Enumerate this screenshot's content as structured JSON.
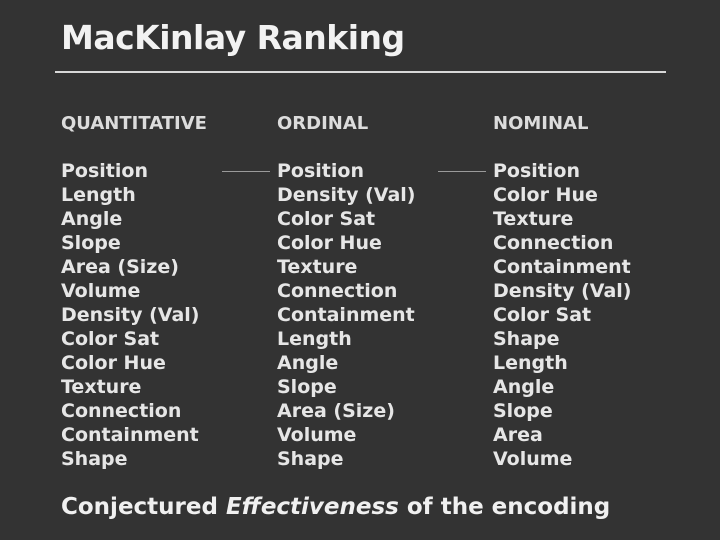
{
  "title": "MacKinlay Ranking",
  "columns": [
    {
      "header": "QUANTITATIVE",
      "items": [
        "Position",
        "Length",
        "Angle",
        "Slope",
        "Area (Size)",
        "Volume",
        "Density (Val)",
        "Color Sat",
        "Color Hue",
        "Texture",
        "Connection",
        "Containment",
        "Shape"
      ]
    },
    {
      "header": "ORDINAL",
      "items": [
        "Position",
        "Density (Val)",
        "Color Sat",
        "Color Hue",
        "Texture",
        "Connection",
        "Containment",
        "Length",
        "Angle",
        "Slope",
        "Area (Size)",
        "Volume",
        "Shape"
      ]
    },
    {
      "header": "NOMINAL",
      "items": [
        "Position",
        "Color Hue",
        "Texture",
        "Connection",
        "Containment",
        "Density (Val)",
        "Color Sat",
        "Shape",
        "Length",
        "Angle",
        "Slope",
        "Area",
        "Volume"
      ]
    }
  ],
  "footer": {
    "before": "Conjectured ",
    "emphasis": "Effectiveness",
    "after": " of the encoding"
  }
}
